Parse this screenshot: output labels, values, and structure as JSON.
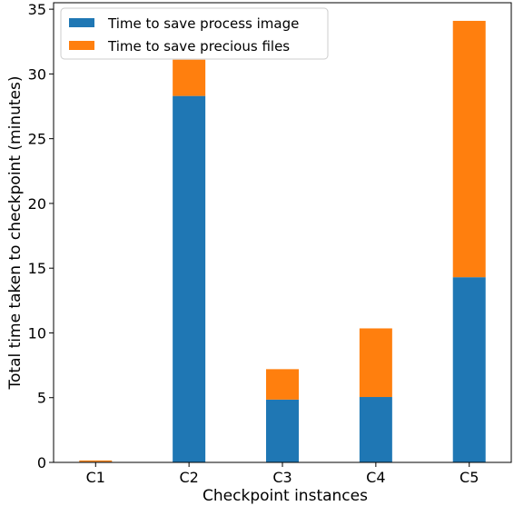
{
  "chart_data": {
    "type": "bar",
    "stacked": true,
    "categories": [
      "C1",
      "C2",
      "C3",
      "C4",
      "C5"
    ],
    "series": [
      {
        "name": "Time to save process image",
        "values": [
          0.05,
          28.3,
          4.85,
          5.05,
          14.3
        ],
        "color": "#1f77b4"
      },
      {
        "name": "Time to save precious files",
        "values": [
          0.1,
          2.8,
          2.35,
          5.3,
          19.8
        ],
        "color": "#ff7f0e"
      }
    ],
    "xlabel": "Checkpoint instances",
    "ylabel": "Total time taken to checkpoint (minutes)",
    "ylim": [
      0,
      35.5
    ],
    "yticks": [
      0,
      5,
      10,
      15,
      20,
      25,
      30,
      35
    ],
    "grid": false,
    "legend_position": "top-left"
  }
}
